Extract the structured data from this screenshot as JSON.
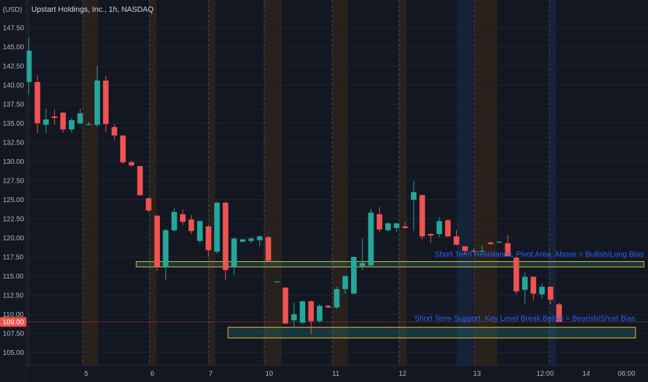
{
  "chart_data": {
    "type": "candlestick",
    "title": "Upstart Holdings, Inc., 1h, NASDAQ",
    "y_unit_label": "(USD)",
    "ylim": [
      103.7,
      149.0
    ],
    "y_ticks": [
      "147.50",
      "145.00",
      "142.50",
      "140.00",
      "137.50",
      "135.00",
      "132.50",
      "130.00",
      "127.50",
      "125.00",
      "122.50",
      "120.00",
      "117.50",
      "115.00",
      "112.50",
      "110.00",
      "107.50",
      "105.00"
    ],
    "x_ticks": [
      "5",
      "6",
      "7",
      "10",
      "11",
      "12",
      "13",
      "12:00",
      "14",
      "06:00"
    ],
    "last_price": {
      "label": "109.00",
      "value": 109.0
    },
    "candles": [
      {
        "o": 140.4,
        "h": 146.2,
        "l": 138.8,
        "c": 144.5
      },
      {
        "o": 140.4,
        "h": 141.3,
        "l": 133.7,
        "c": 135.0
      },
      {
        "o": 134.8,
        "h": 136.9,
        "l": 133.7,
        "c": 135.5
      },
      {
        "o": 135.9,
        "h": 136.8,
        "l": 134.8,
        "c": 135.7
      },
      {
        "o": 136.4,
        "h": 136.4,
        "l": 133.8,
        "c": 134.2
      },
      {
        "o": 134.2,
        "h": 135.7,
        "l": 133.8,
        "c": 135.4
      },
      {
        "o": 135.0,
        "h": 136.9,
        "l": 134.8,
        "c": 136.3
      },
      {
        "o": 134.9,
        "h": 135.2,
        "l": 134.8,
        "c": 134.9
      },
      {
        "o": 134.8,
        "h": 142.5,
        "l": 134.5,
        "c": 140.6
      },
      {
        "o": 140.6,
        "h": 141.2,
        "l": 133.8,
        "c": 134.9
      },
      {
        "o": 134.5,
        "h": 134.9,
        "l": 132.8,
        "c": 133.4
      },
      {
        "o": 133.4,
        "h": 133.4,
        "l": 129.7,
        "c": 129.9
      },
      {
        "o": 129.9,
        "h": 130.1,
        "l": 129.3,
        "c": 129.5
      },
      {
        "o": 129.4,
        "h": 129.4,
        "l": 125.5,
        "c": 125.6
      },
      {
        "o": 125.2,
        "h": 125.3,
        "l": 123.4,
        "c": 123.6
      },
      {
        "o": 122.9,
        "h": 123.0,
        "l": 115.7,
        "c": 116.2
      },
      {
        "o": 116.2,
        "h": 121.2,
        "l": 114.4,
        "c": 121.0
      },
      {
        "o": 121.0,
        "h": 123.9,
        "l": 120.8,
        "c": 123.4
      },
      {
        "o": 123.1,
        "h": 123.7,
        "l": 121.7,
        "c": 122.1
      },
      {
        "o": 122.4,
        "h": 123.0,
        "l": 120.5,
        "c": 120.9
      },
      {
        "o": 119.6,
        "h": 122.3,
        "l": 119.3,
        "c": 122.2
      },
      {
        "o": 121.5,
        "h": 121.7,
        "l": 117.5,
        "c": 118.4
      },
      {
        "o": 118.2,
        "h": 124.8,
        "l": 117.9,
        "c": 124.6
      },
      {
        "o": 124.6,
        "h": 124.8,
        "l": 114.5,
        "c": 115.8
      },
      {
        "o": 116.2,
        "h": 120.1,
        "l": 115.2,
        "c": 119.9
      },
      {
        "o": 119.5,
        "h": 119.9,
        "l": 119.4,
        "c": 119.8
      },
      {
        "o": 119.6,
        "h": 120.1,
        "l": 119.3,
        "c": 119.9
      },
      {
        "o": 119.7,
        "h": 120.3,
        "l": 118.9,
        "c": 120.2
      },
      {
        "o": 120.1,
        "h": 120.2,
        "l": 116.8,
        "c": 117.0
      },
      {
        "o": 114.2,
        "h": 114.3,
        "l": 114.2,
        "c": 114.3
      },
      {
        "o": 113.5,
        "h": 113.5,
        "l": 108.7,
        "c": 108.8
      },
      {
        "o": 109.2,
        "h": 111.5,
        "l": 108.4,
        "c": 110.0
      },
      {
        "o": 108.9,
        "h": 111.8,
        "l": 108.7,
        "c": 111.7
      },
      {
        "o": 111.7,
        "h": 111.8,
        "l": 107.4,
        "c": 109.1
      },
      {
        "o": 109.1,
        "h": 111.3,
        "l": 108.9,
        "c": 111.1
      },
      {
        "o": 111.1,
        "h": 111.2,
        "l": 110.8,
        "c": 110.9
      },
      {
        "o": 110.9,
        "h": 113.6,
        "l": 110.7,
        "c": 113.3
      },
      {
        "o": 113.3,
        "h": 115.1,
        "l": 112.7,
        "c": 115.0
      },
      {
        "o": 112.7,
        "h": 117.6,
        "l": 112.6,
        "c": 117.5
      },
      {
        "o": 116.3,
        "h": 119.9,
        "l": 115.7,
        "c": 116.7
      },
      {
        "o": 116.4,
        "h": 123.8,
        "l": 116.3,
        "c": 123.3
      },
      {
        "o": 123.1,
        "h": 124.1,
        "l": 120.8,
        "c": 121.1
      },
      {
        "o": 121.0,
        "h": 122.1,
        "l": 120.8,
        "c": 121.9
      },
      {
        "o": 121.3,
        "h": 122.0,
        "l": 120.8,
        "c": 121.9
      },
      {
        "o": 121.5,
        "h": 122.1,
        "l": 121.2,
        "c": 121.3
      },
      {
        "o": 125.0,
        "h": 127.4,
        "l": 120.9,
        "c": 126.0
      },
      {
        "o": 125.6,
        "h": 125.7,
        "l": 119.8,
        "c": 120.2
      },
      {
        "o": 120.5,
        "h": 120.6,
        "l": 119.3,
        "c": 120.3
      },
      {
        "o": 120.5,
        "h": 122.7,
        "l": 120.1,
        "c": 122.2
      },
      {
        "o": 122.3,
        "h": 122.5,
        "l": 120.1,
        "c": 120.2
      },
      {
        "o": 120.2,
        "h": 121.0,
        "l": 119.0,
        "c": 119.1
      },
      {
        "o": 118.9,
        "h": 118.9,
        "l": 117.8,
        "c": 118.3
      },
      {
        "o": 118.3,
        "h": 118.6,
        "l": 118.1,
        "c": 118.2
      },
      {
        "o": 118.3,
        "h": 119.0,
        "l": 118.1,
        "c": 118.3
      },
      {
        "o": 119.4,
        "h": 119.5,
        "l": 119.1,
        "c": 119.2
      },
      {
        "o": 119.4,
        "h": 119.6,
        "l": 119.3,
        "c": 119.5
      },
      {
        "o": 119.3,
        "h": 120.4,
        "l": 117.6,
        "c": 117.6
      },
      {
        "o": 117.4,
        "h": 117.5,
        "l": 112.6,
        "c": 113.0
      },
      {
        "o": 113.2,
        "h": 115.5,
        "l": 111.3,
        "c": 114.9
      },
      {
        "o": 114.9,
        "h": 115.0,
        "l": 111.8,
        "c": 112.7
      },
      {
        "o": 112.6,
        "h": 114.0,
        "l": 112.0,
        "c": 113.6
      },
      {
        "o": 113.6,
        "h": 113.7,
        "l": 111.3,
        "c": 111.9
      },
      {
        "o": 111.3,
        "h": 111.5,
        "l": 109.0,
        "c": 109.0
      }
    ],
    "annotations": [
      {
        "name": "resistance-zone",
        "label": "Short Term Resistance, Pivot Area, Above = Bullish/Long Bias",
        "y_top": 116.9,
        "y_bottom": 116.2
      },
      {
        "name": "support-zone",
        "label": "Short Term Support, Key Level Break Below = Bearish/Short Bias",
        "y_top": 108.3,
        "y_bottom": 106.9
      }
    ],
    "colors": {
      "background": "#131722",
      "up": "#26a69a",
      "down": "#ef5350",
      "grid": "#1f2331",
      "zone_fill": "#26a69a",
      "zone_border": "#f5c431",
      "annotation_text": "#2962ff",
      "session_band_orange": "#3a2a18",
      "session_band_blue": "#1a2c4a",
      "price_line": "#ef5350"
    }
  }
}
